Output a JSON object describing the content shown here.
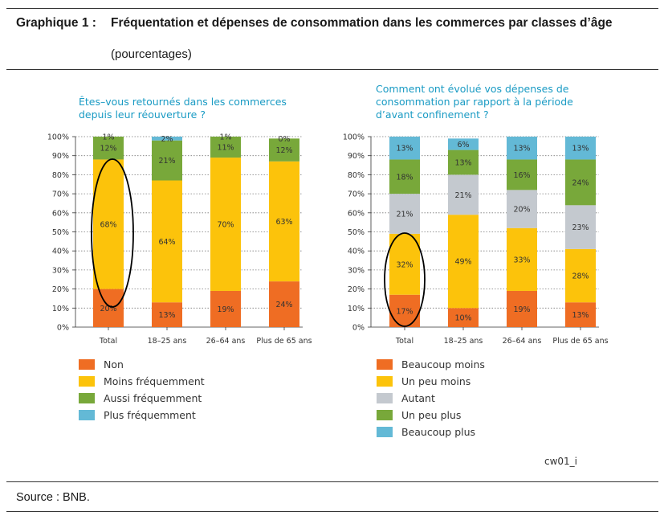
{
  "header": {
    "lead": "Graphique 1 :",
    "title": "Fréquentation et dépenses de consommation dans les commerces par classes d’âge",
    "subtitle": "(pourcentages)"
  },
  "colors": {
    "orange": "#ef6d23",
    "yellow": "#fcc30b",
    "gray": "#c4c9cf",
    "green": "#78a83a",
    "blue": "#63b9d6",
    "title_blue": "#1a9bc4"
  },
  "chart_data": [
    {
      "type": "bar",
      "stacked": true,
      "title": "Êtes–vous retournés dans les commerces depuis leur réouverture ?",
      "categories": [
        "Total",
        "18–25 ans",
        "26–64 ans",
        "Plus de 65 ans"
      ],
      "y_tick_labels": [
        "0%",
        "10%",
        "20%",
        "30%",
        "40%",
        "50%",
        "60%",
        "70%",
        "80%",
        "90%",
        "100%"
      ],
      "ylim": [
        0,
        100
      ],
      "grid": true,
      "legend_position": "bottom",
      "highlight": "Total",
      "series": [
        {
          "name": "Non",
          "color": "#ef6d23",
          "values": [
            20,
            13,
            19,
            24
          ],
          "labels": [
            "20%",
            "13%",
            "19%",
            "24%"
          ]
        },
        {
          "name": "Moins fréquemment",
          "color": "#fcc30b",
          "values": [
            68,
            64,
            70,
            63
          ],
          "labels": [
            "68%",
            "64%",
            "70%",
            "63%"
          ]
        },
        {
          "name": "Aussi fréquemment",
          "color": "#78a83a",
          "values": [
            12,
            21,
            11,
            12
          ],
          "labels": [
            "12%",
            "21%",
            "11%",
            "12%"
          ]
        },
        {
          "name": "Plus fréquemment",
          "color": "#63b9d6",
          "values": [
            1,
            2,
            1,
            0
          ],
          "labels": [
            "1%",
            "2%",
            "1%",
            "0%"
          ]
        }
      ]
    },
    {
      "type": "bar",
      "stacked": true,
      "title": "Comment ont évolué vos dépenses de consommation par rapport à la période d’avant confinement ?",
      "categories": [
        "Total",
        "18–25 ans",
        "26–64 ans",
        "Plus de 65 ans"
      ],
      "y_tick_labels": [
        "0%",
        "10%",
        "20%",
        "30%",
        "40%",
        "50%",
        "60%",
        "70%",
        "80%",
        "90%",
        "100%"
      ],
      "ylim": [
        0,
        100
      ],
      "grid": true,
      "legend_position": "bottom",
      "highlight": "Total",
      "series": [
        {
          "name": "Beaucoup moins",
          "color": "#ef6d23",
          "values": [
            17,
            10,
            19,
            13
          ],
          "labels": [
            "17%",
            "10%",
            "19%",
            "13%"
          ]
        },
        {
          "name": "Un peu moins",
          "color": "#fcc30b",
          "values": [
            32,
            49,
            33,
            28
          ],
          "labels": [
            "32%",
            "49%",
            "33%",
            "28%"
          ]
        },
        {
          "name": "Autant",
          "color": "#c4c9cf",
          "values": [
            21,
            21,
            20,
            23
          ],
          "labels": [
            "21%",
            "21%",
            "20%",
            "23%"
          ]
        },
        {
          "name": "Un peu plus",
          "color": "#78a83a",
          "values": [
            18,
            13,
            16,
            24
          ],
          "labels": [
            "18%",
            "13%",
            "16%",
            "24%"
          ]
        },
        {
          "name": "Beaucoup plus",
          "color": "#63b9d6",
          "values": [
            13,
            6,
            13,
            13
          ],
          "labels": [
            "13%",
            "6%",
            "13%",
            "13%"
          ]
        }
      ]
    }
  ],
  "figure_code": "cw01_i",
  "source": "Source : BNB."
}
